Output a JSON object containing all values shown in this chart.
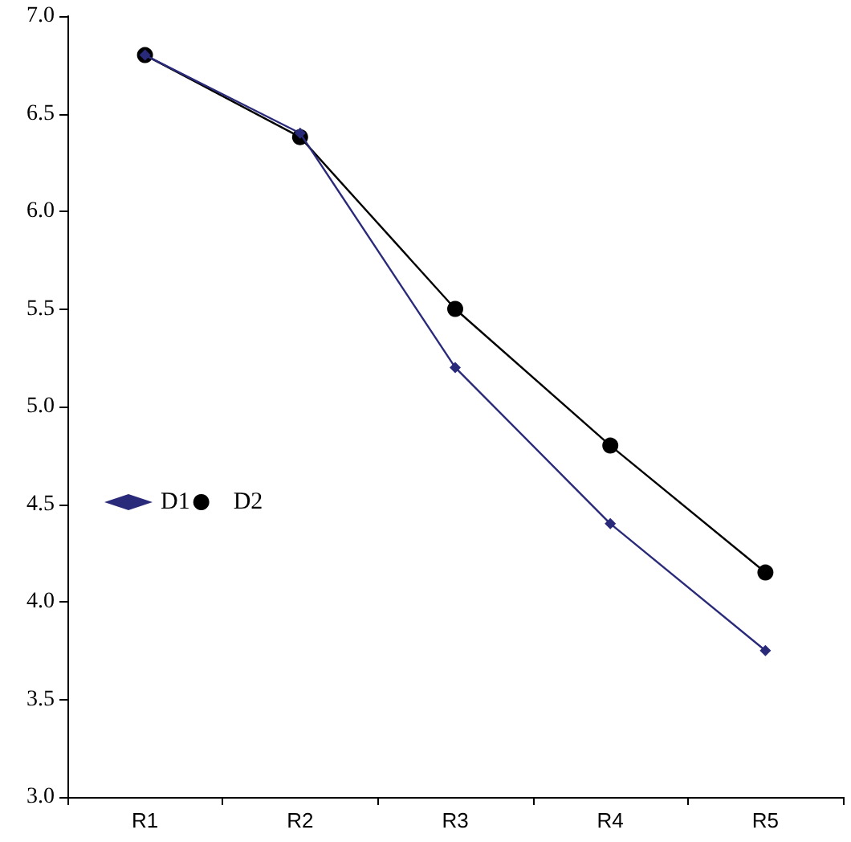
{
  "chart_data": {
    "type": "line",
    "categories": [
      "R1",
      "R2",
      "R3",
      "R4",
      "R5"
    ],
    "series": [
      {
        "name": "D1",
        "color": "#2a2a7a",
        "marker": "diamond",
        "values": [
          6.8,
          6.4,
          5.2,
          4.4,
          3.75
        ]
      },
      {
        "name": "D2",
        "color": "#000000",
        "marker": "circle",
        "values": [
          6.8,
          6.38,
          5.5,
          4.8,
          4.15
        ]
      }
    ],
    "ylim": [
      3,
      7
    ],
    "yticks": [
      {
        "value": 3,
        "label": "3.0"
      },
      {
        "value": 3.5,
        "label": "3.5"
      },
      {
        "value": 4,
        "label": "4.0"
      },
      {
        "value": 4.5,
        "label": "4.5"
      },
      {
        "value": 5,
        "label": "5.0"
      },
      {
        "value": 5.5,
        "label": "5.5"
      },
      {
        "value": 6,
        "label": "6.0"
      },
      {
        "value": 6.5,
        "label": "6.5"
      },
      {
        "value": 7,
        "label": "7.0"
      }
    ],
    "grid": false,
    "legend": "left",
    "line_style": "solid"
  }
}
